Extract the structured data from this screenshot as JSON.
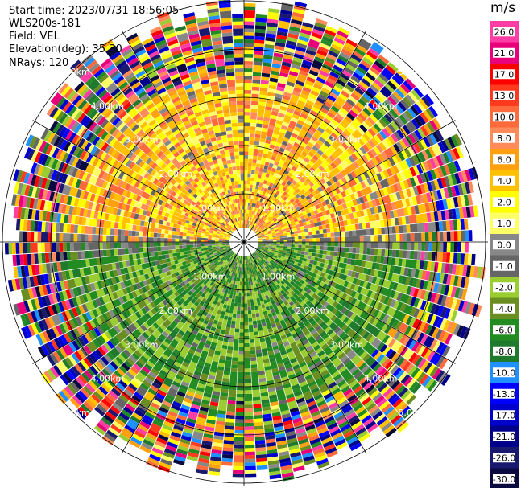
{
  "info": {
    "start_time": "Start time: 2023/07/31 18:56:05",
    "instrument": "WLS200s-181",
    "field": "Field: VEL",
    "elevation": "Elevation(deg): 35.30",
    "nrays": "NRays: 120"
  },
  "colorbar": {
    "unit": "m/s",
    "ticks": [
      "26.0",
      "21.0",
      "17.0",
      "13.0",
      "10.0",
      "8.0",
      "6.0",
      "4.0",
      "2.0",
      "1.0",
      "0.0",
      "-1.0",
      "-2.0",
      "-4.0",
      "-6.0",
      "-8.0",
      "-10.0",
      "-13.0",
      "-17.0",
      "-21.0",
      "-26.0",
      "-30.0"
    ],
    "colors": [
      "#ff3ea5",
      "#e8007a",
      "#ff0000",
      "#ff3a1e",
      "#ff6a3c",
      "#ff8a5a",
      "#ffa010",
      "#ffc000",
      "#ffff00",
      "#ffff66",
      "#888888",
      "#666666",
      "#9acd32",
      "#6b8e23",
      "#228b22",
      "#1f7a2e",
      "#1e90ff",
      "#0000ff",
      "#0000cd",
      "#00008b",
      "#191970",
      "#0a0a40"
    ]
  },
  "chart_data": {
    "type": "heatmap",
    "kind": "lidar PPI scan",
    "field": "VEL",
    "nrays": 120,
    "range_rings_km": [
      1.0,
      2.0,
      3.0,
      4.0,
      5.0
    ],
    "ring_labels": [
      "1.00km",
      "2.00km",
      "3.00km",
      "4.00km",
      "5.00km"
    ],
    "pattern": "Near ranges (<3 km): north half positive radial velocity 2–8 m/s (yellow/orange), south half negative -2 to -8 m/s (green). Beyond ~3.5 km: noisy random values across full color scale."
  }
}
